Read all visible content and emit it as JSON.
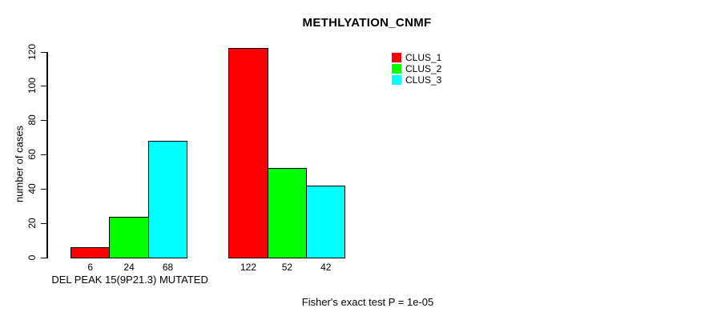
{
  "chart_data": {
    "type": "bar",
    "title": "METHLYATION_CNMF",
    "ylabel": "number of cases",
    "ylim": [
      0,
      120
    ],
    "yticks": [
      0,
      20,
      40,
      60,
      80,
      100,
      120
    ],
    "categories": [
      "DEL PEAK 15(9P21.3) MUTATED",
      ""
    ],
    "series": [
      {
        "name": "CLUS_1",
        "color": "#FF0000",
        "values": [
          6,
          122
        ]
      },
      {
        "name": "CLUS_2",
        "color": "#00FF00",
        "values": [
          24,
          52
        ]
      },
      {
        "name": "CLUS_3",
        "color": "#00FFFF",
        "values": [
          68,
          42
        ]
      }
    ],
    "bar_value_labels": [
      [
        6,
        24,
        68
      ],
      [
        122,
        52,
        42
      ]
    ],
    "annotation": "Fisher's exact test P = 1e-05",
    "legend_position": "top-right",
    "grid": false,
    "bar_border_color": "#000000",
    "background_color": "#FFFFFF"
  }
}
